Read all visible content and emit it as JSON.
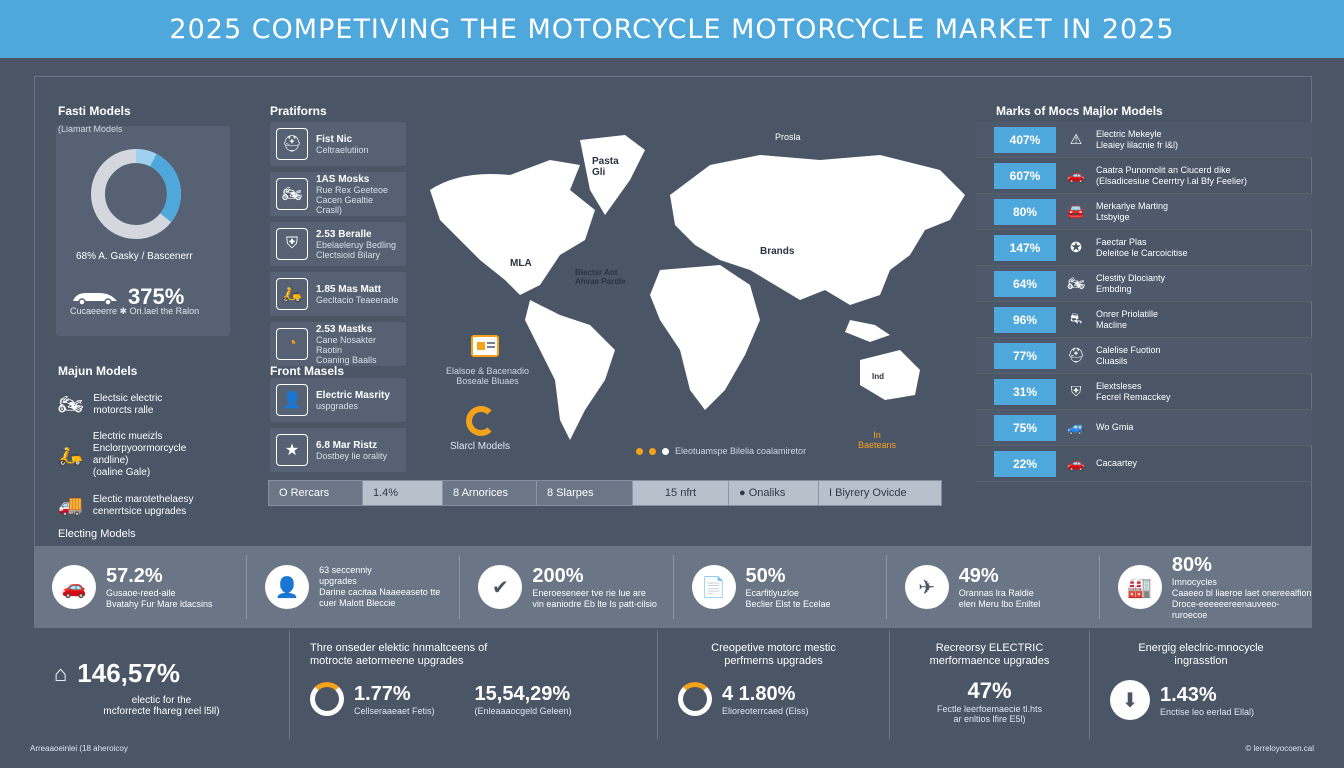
{
  "header": {
    "title": "2025  COMPETIVING THE MOTORCYCLE MOTORCYCLE MARKET IN 2025"
  },
  "left": {
    "title": "Fasti Models",
    "subtitle": "(Liamart Models",
    "donut_caption": "68% A. Gasky / Bascenerr",
    "car_value": "375%",
    "car_note": "Cucaeeerre  ✱ Ori.lael the Ralon",
    "major_title": "Majun Models",
    "major_items": [
      {
        "label": "Electsic electric\nmotorcts ralle"
      },
      {
        "label": "Electric mueizls\nEnclorpyoormorcycle\nandline)\n(oaline Gale)"
      },
      {
        "label": "Electic marotethelaesy\ncenerrtsice upgrades"
      }
    ],
    "elec_title": "Electing Models"
  },
  "platforms": {
    "title": "Pratiforns",
    "items": [
      {
        "t1": "Fist Nic",
        "t2": "Celtraelutiion"
      },
      {
        "t1": "1AS Mosks",
        "t2": "Rue Rex Geeteoe\nCacen Gealtie Crasll)"
      },
      {
        "t1": "2.53 Beralle",
        "t2": "Ebelaeleruy Bedling\nClectsioid Bilary"
      },
      {
        "t1": "1.85 Mas Matt",
        "t2": "Gecltacio Teaeerade"
      },
      {
        "t1": "2.53 Mastks",
        "t2": "Cane Nosakter Raotin\nCoaning Baalls"
      }
    ],
    "front_title": "Front Masels",
    "front_items": [
      {
        "t1": "Electric Masrity",
        "t2": "uspgrades"
      },
      {
        "t1": "6.8 Mar Ristz",
        "t2": "Dostbey lie orality"
      }
    ]
  },
  "map": {
    "labels": {
      "top": "Prosla",
      "greenland": "Pasta\nGli",
      "na": "MLA",
      "center": "Brands",
      "atlantic": "Blectsr Ant\nAhvae Pardle",
      "oceania": "Ind",
      "doc": "Elalsoe & Bacenadio\nBoseale Bluaes",
      "ring_label": "Slarcl Models",
      "legend": "Eleotuamspe Bilelia coalamiretor",
      "orange_label": "In\nBaeteans"
    }
  },
  "filters": [
    "O Rercars",
    "1.4%",
    "8 Arnorices",
    "8 Slarpes",
    "15 nfrt",
    "● Onaliks",
    "I Biyrery Ovicde"
  ],
  "right": {
    "title": "Marks of Mocs Majlor Models",
    "rows": [
      {
        "pct": "407%",
        "icon": "warning-icon",
        "glyph": "⚠",
        "label": "Electric Mekeyle\nLleaiey lilacnie fr l&l)"
      },
      {
        "pct": "607%",
        "icon": "car-icon",
        "glyph": "🚗",
        "label": "Caatra Punomolit an Ciucerd dike\n(Elsadicesiue Ceerrtry l.al Bfy Feelier)"
      },
      {
        "pct": "80%",
        "icon": "car-icon",
        "glyph": "🚘",
        "label": "Merkarlye Marting\nLtsbyige"
      },
      {
        "pct": "147%",
        "icon": "star-icon",
        "glyph": "✪",
        "label": "Faectar Plas\nDeleitoe le Carcoicitise"
      },
      {
        "pct": "64%",
        "icon": "bike-icon",
        "glyph": "🏍",
        "label": "Clestity Dlocianty\nEmbding"
      },
      {
        "pct": "96%",
        "icon": "rider-icon",
        "glyph": "⛐",
        "label": "Onrer  Priolatille\nMacline"
      },
      {
        "pct": "77%",
        "icon": "helmet-icon",
        "glyph": "⛑",
        "label": "Calelise Fuotion\nCluasils"
      },
      {
        "pct": "31%",
        "icon": "shield-icon",
        "glyph": "⛨",
        "label": "Elextsleses\nFecrel Remacckey"
      },
      {
        "pct": "75%",
        "icon": "car-icon",
        "glyph": "🚙",
        "label": "Wo Gmia"
      },
      {
        "pct": "22%",
        "icon": "car-icon",
        "glyph": "🚗",
        "label": "Cacaartey"
      }
    ]
  },
  "stats": [
    {
      "icon": "car-icon",
      "glyph": "🚗",
      "value": "57.2%",
      "label": "Gusaoe-reed-aile\nBvatahy Fur Mare ldacsins"
    },
    {
      "icon": "person-icon",
      "glyph": "👤",
      "value": "",
      "label": "63 seccenniy\nupgrades\nDarine cacitaa Naaeeaseto tte\ncuer Malott Bleccie"
    },
    {
      "icon": "check-icon",
      "glyph": "✔",
      "value": "200%",
      "label": "Eneroeseneer tve rie lue are\nvin eaniodre Eb lte Is patt-cilsio"
    },
    {
      "icon": "document-icon",
      "glyph": "📄",
      "value": "50%",
      "label": "Ecarfitlyuzloe\nBeclier Elst te Ecelae"
    },
    {
      "icon": "plane-icon",
      "glyph": "✈",
      "value": "49%",
      "label": "Orannas lra Raldie\nelen Meru lbo Eniltel"
    },
    {
      "icon": "garage-icon",
      "glyph": "🏭",
      "value": "80%",
      "label": "Imnocycles\nCaaeeo bl liaeroe laet onereealfion\nDroce-eeeeeereenauveeo-ruroecoe"
    }
  ],
  "bottom": [
    {
      "icon": "home-icon",
      "head": "",
      "value": "146,57%",
      "note": "electic for the\nmcforrecte fhareg reel l5ll)"
    },
    {
      "icon": "clock-icon",
      "head": "Thre onseder elektic hnmaltceens of\nmotrocte aetormeene upgrades",
      "value": "1.77%",
      "value2": "15,54,29%",
      "note": "Cellseraaeaet Fetis)",
      "note2": "(Enleaaaocgeld Geleen)"
    },
    {
      "icon": "gauge-icon",
      "head": "Creopetive motorc mestic\nperfmerns upgrades",
      "value": "4 1.80%",
      "note": "Elioreoterrcaed (Elss)"
    },
    {
      "icon": "",
      "head": "Recreorsy ELECTRIC\nmerformaence upgrades",
      "value": "47%",
      "note": "Fectle leerfoemaecie tl.hts\nar enltios lfire E5l)"
    },
    {
      "icon": "download-icon",
      "head": "Energig eleclric-mnocycle\ningrasstlon",
      "value": "1.43%",
      "note": "Enctise leo eerlad Ellal)"
    }
  ],
  "footer": {
    "left": "Arreaaoeinlei (18 aheroicoy",
    "right": "© lerreloyocoen.cal"
  },
  "colors": {
    "accent": "#4fa8dc",
    "background": "#4a5566",
    "orange": "#f5a21b"
  }
}
